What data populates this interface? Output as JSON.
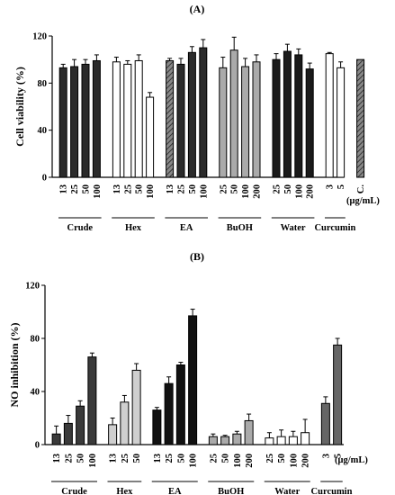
{
  "chart_data": [
    {
      "panel_label": "(A)",
      "type": "bar",
      "ylabel": "Cell viability (%)",
      "ylim": [
        0,
        120
      ],
      "yticks": [
        0,
        40,
        80,
        120
      ],
      "unit_label": "(μg/mL)",
      "groups": [
        {
          "name": "Crude",
          "ticks": [
            "13",
            "25",
            "50",
            "100"
          ],
          "values": [
            93,
            94,
            96,
            99
          ],
          "errors": [
            3,
            6,
            4,
            5
          ],
          "fill": "#2b2b2b"
        },
        {
          "name": "Hex",
          "ticks": [
            "13",
            "25",
            "50",
            "100"
          ],
          "values": [
            98,
            96,
            99,
            68
          ],
          "errors": [
            4,
            3,
            5,
            4
          ],
          "fill": "#ffffff"
        },
        {
          "name": "EA",
          "ticks": [
            "13",
            "25",
            "50",
            "100"
          ],
          "values": [
            99,
            96,
            106,
            110
          ],
          "errors": [
            2,
            5,
            5,
            7
          ],
          "fill": "#2b2b2b"
        },
        {
          "name": "BuOH",
          "ticks": [
            "25",
            "50",
            "100",
            "200"
          ],
          "values": [
            93,
            108,
            94,
            98
          ],
          "errors": [
            9,
            11,
            7,
            6
          ],
          "fill": "#aaaaaa"
        },
        {
          "name": "Water",
          "ticks": [
            "25",
            "50",
            "100",
            "200"
          ],
          "values": [
            100,
            107,
            104,
            92
          ],
          "errors": [
            5,
            6,
            5,
            5
          ],
          "fill": "#1a1a1a"
        },
        {
          "name": "Curcumin",
          "ticks": [
            "3",
            "5"
          ],
          "values": [
            105,
            93
          ],
          "errors": [
            1,
            5
          ],
          "fill": "#ffffff"
        },
        {
          "name": "",
          "ticks": [
            "C."
          ],
          "values": [
            100
          ],
          "errors": [
            0
          ],
          "fill": "#777777"
        }
      ]
    },
    {
      "panel_label": "(B)",
      "type": "bar",
      "ylabel": "NO inhibition (%)",
      "ylim": [
        0,
        120
      ],
      "yticks": [
        0,
        40,
        80,
        120
      ],
      "unit_label": "(μg/mL)",
      "groups": [
        {
          "name": "Crude",
          "ticks": [
            "13",
            "25",
            "50",
            "100"
          ],
          "values": [
            8,
            16,
            29,
            66
          ],
          "errors": [
            6,
            6,
            4,
            3
          ],
          "fill": "#3a3a3a"
        },
        {
          "name": "Hex",
          "ticks": [
            "13",
            "25",
            "50"
          ],
          "values": [
            15,
            32,
            56
          ],
          "errors": [
            5,
            5,
            5
          ],
          "fill": "#cfcfcf"
        },
        {
          "name": "EA",
          "ticks": [
            "13",
            "25",
            "50",
            "100"
          ],
          "values": [
            26,
            46,
            60,
            97
          ],
          "errors": [
            2,
            5,
            2,
            5
          ],
          "fill": "#111111"
        },
        {
          "name": "BuOH",
          "ticks": [
            "25",
            "50",
            "100",
            "200"
          ],
          "values": [
            6,
            6,
            8,
            18
          ],
          "errors": [
            2,
            1,
            2,
            5
          ],
          "fill": "#aaaaaa"
        },
        {
          "name": "Water",
          "ticks": [
            "25",
            "50",
            "100",
            "200"
          ],
          "values": [
            5,
            6,
            6,
            9
          ],
          "errors": [
            4,
            5,
            4,
            10
          ],
          "fill": "#ffffff"
        },
        {
          "name": "Curcumin",
          "ticks": [
            "3",
            "5"
          ],
          "values": [
            31,
            75
          ],
          "errors": [
            5,
            5
          ],
          "fill": "#666666"
        }
      ]
    }
  ]
}
